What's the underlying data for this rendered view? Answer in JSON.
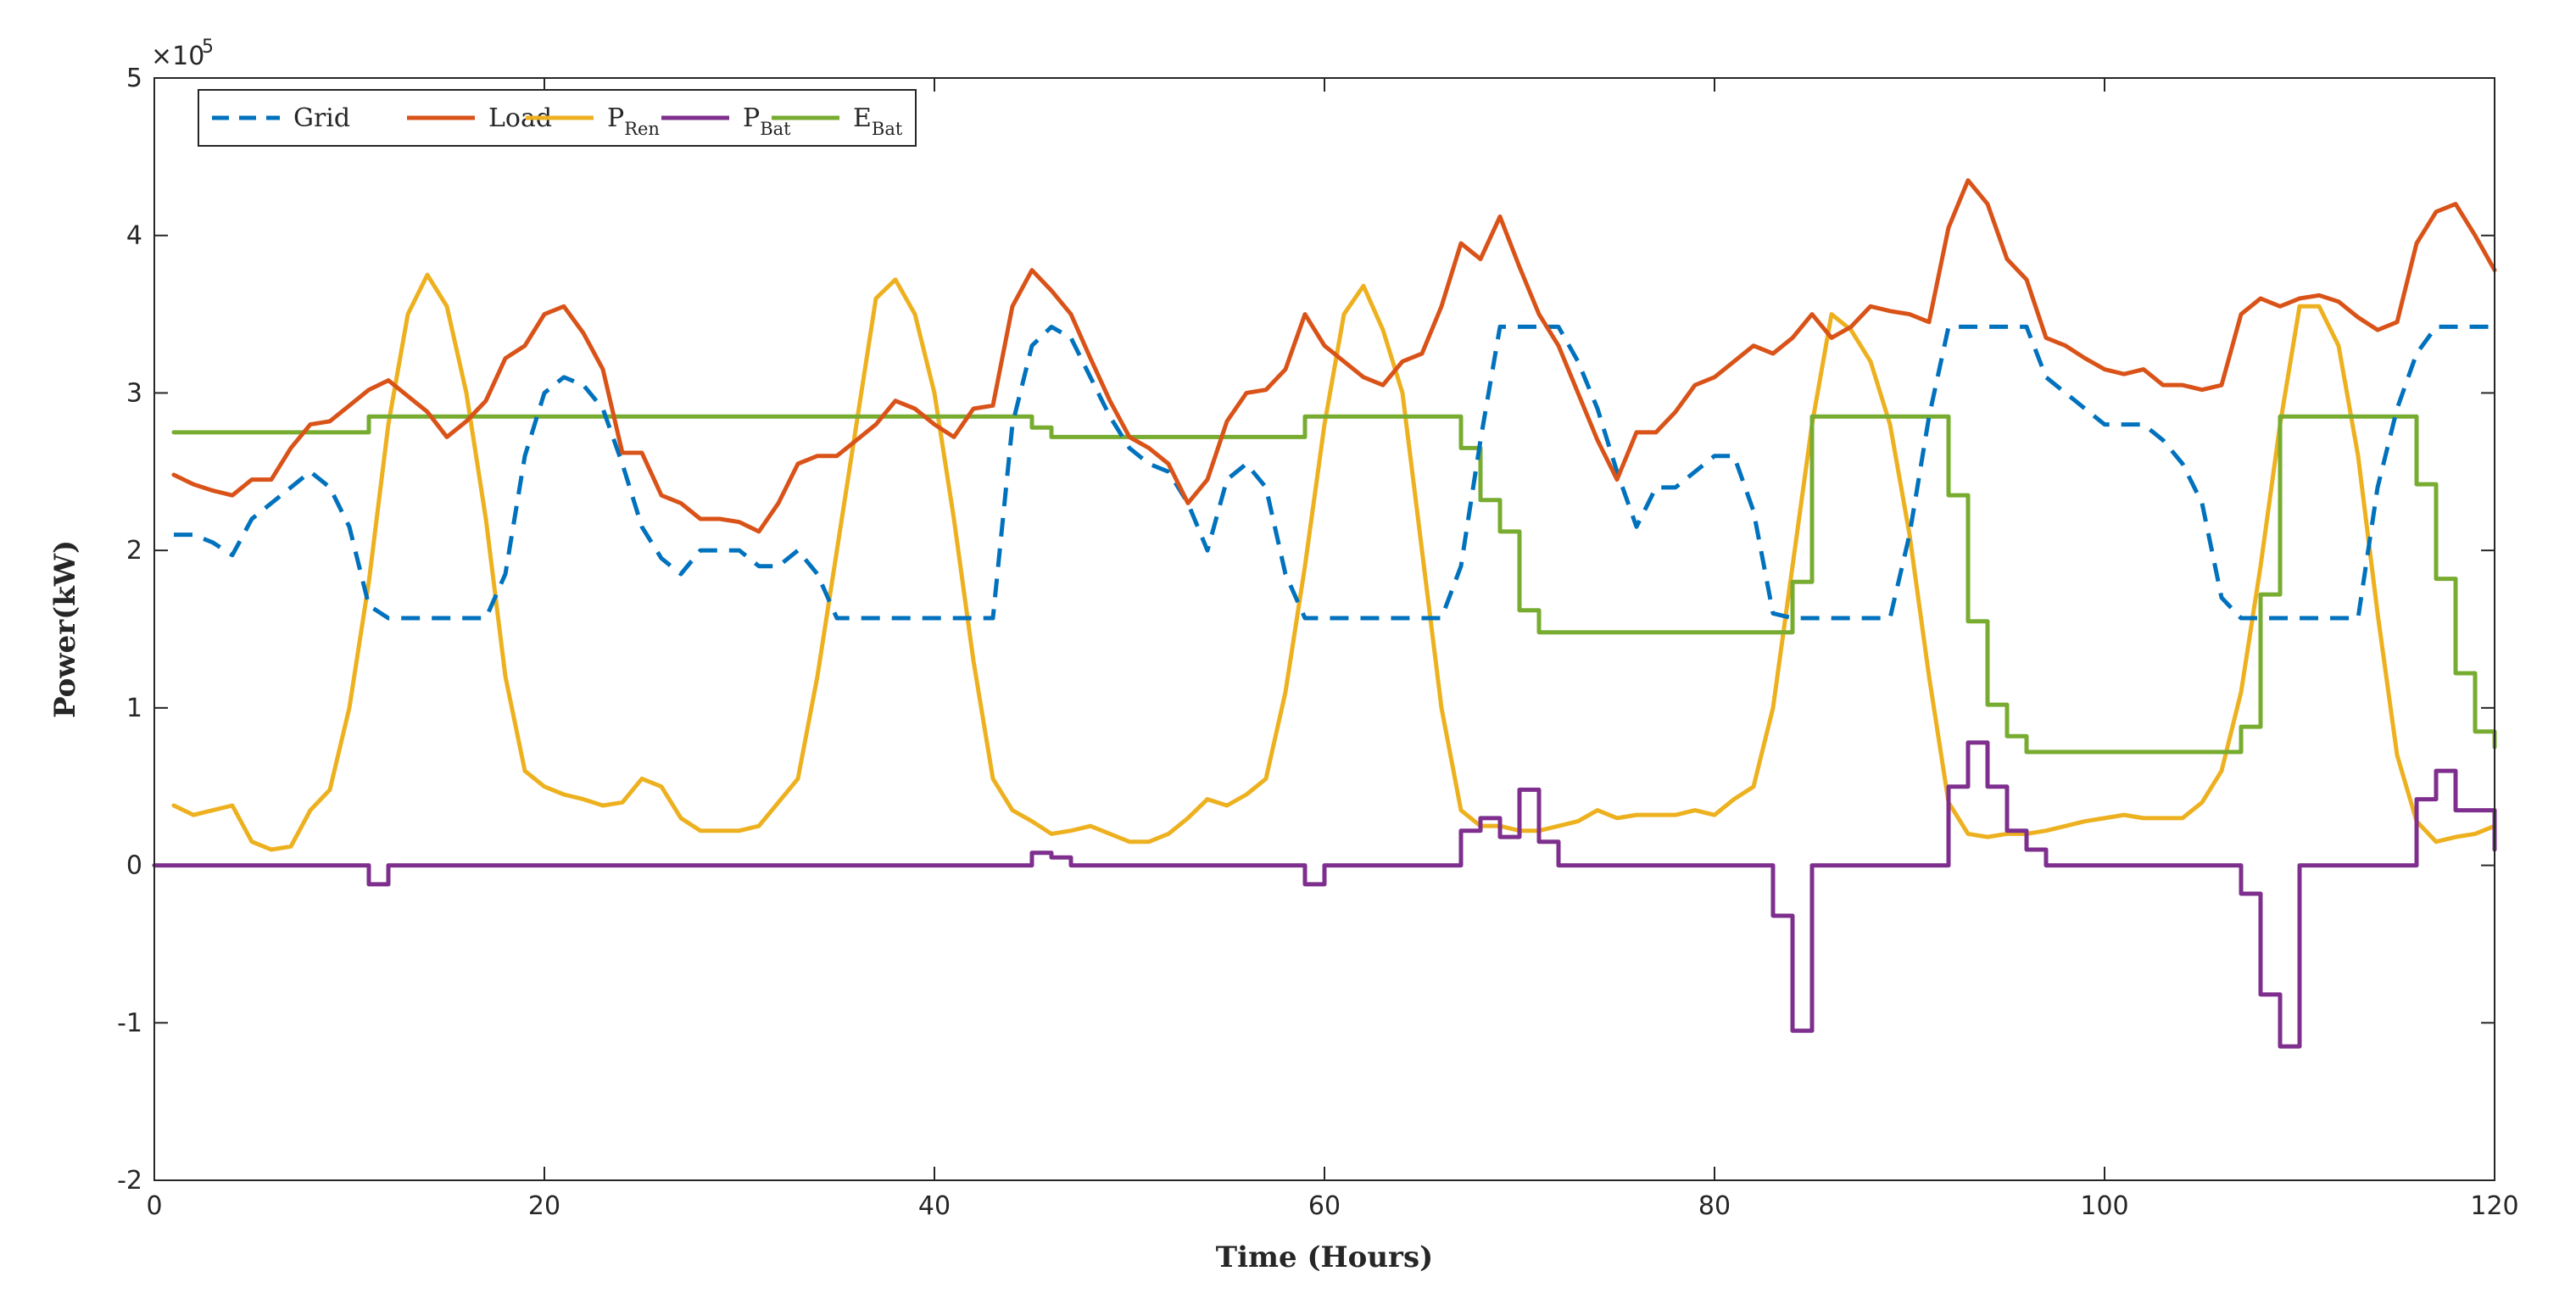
{
  "chart_data": {
    "type": "line",
    "title": "",
    "xlabel": "Time (Hours)",
    "ylabel": "Power(kW)",
    "xlim": [
      0,
      120
    ],
    "ylim": [
      -2,
      5
    ],
    "y_multiplier": "×10",
    "y_exponent": "5",
    "x_ticks": [
      "0",
      "20",
      "40",
      "60",
      "80",
      "100",
      "120"
    ],
    "y_ticks": [
      "-2",
      "-1",
      "0",
      "1",
      "2",
      "3",
      "4",
      "5"
    ],
    "x_tick_values": [
      0,
      20,
      40,
      60,
      80,
      100,
      120
    ],
    "y_tick_values": [
      -2,
      -1,
      0,
      1,
      2,
      3,
      4,
      5
    ],
    "legend_position": "top-left",
    "series": [
      {
        "name": "Grid",
        "legend_main": "Grid",
        "legend_sub": "",
        "color": "#0072BD",
        "style": "dashed",
        "step": false,
        "x": [
          1,
          2,
          3,
          4,
          5,
          6,
          7,
          8,
          9,
          10,
          11,
          12,
          13,
          14,
          15,
          16,
          17,
          18,
          19,
          20,
          21,
          22,
          23,
          24,
          25,
          26,
          27,
          28,
          29,
          30,
          31,
          32,
          33,
          34,
          35,
          36,
          37,
          38,
          39,
          40,
          41,
          42,
          43,
          44,
          45,
          46,
          47,
          48,
          49,
          50,
          51,
          52,
          53,
          54,
          55,
          56,
          57,
          58,
          59,
          60,
          61,
          62,
          63,
          64,
          65,
          66,
          67,
          68,
          69,
          70,
          71,
          72,
          73,
          74,
          75,
          76,
          77,
          78,
          79,
          80,
          81,
          82,
          83,
          84,
          85,
          86,
          87,
          88,
          89,
          90,
          91,
          92,
          93,
          94,
          95,
          96,
          97,
          98,
          99,
          100,
          101,
          102,
          103,
          104,
          105,
          106,
          107,
          108,
          109,
          110,
          111,
          112,
          113,
          114,
          115,
          116,
          117,
          118,
          119,
          120
        ],
        "y": [
          2.1,
          2.1,
          2.05,
          1.97,
          2.2,
          2.3,
          2.4,
          2.5,
          2.4,
          2.15,
          1.65,
          1.57,
          1.57,
          1.57,
          1.57,
          1.57,
          1.57,
          1.85,
          2.6,
          3.0,
          3.1,
          3.05,
          2.9,
          2.55,
          2.15,
          1.95,
          1.85,
          2.0,
          2.0,
          2.0,
          1.9,
          1.9,
          2.0,
          1.85,
          1.57,
          1.57,
          1.57,
          1.57,
          1.57,
          1.57,
          1.57,
          1.57,
          1.57,
          2.8,
          3.3,
          3.42,
          3.35,
          3.1,
          2.85,
          2.65,
          2.55,
          2.5,
          2.3,
          2.0,
          2.45,
          2.55,
          2.4,
          1.85,
          1.57,
          1.57,
          1.57,
          1.57,
          1.57,
          1.57,
          1.57,
          1.57,
          1.9,
          2.7,
          3.42,
          3.42,
          3.42,
          3.42,
          3.2,
          2.9,
          2.5,
          2.15,
          2.4,
          2.4,
          2.5,
          2.6,
          2.6,
          2.25,
          1.6,
          1.57,
          1.57,
          1.57,
          1.57,
          1.57,
          1.57,
          2.1,
          2.85,
          3.42,
          3.42,
          3.42,
          3.42,
          3.42,
          3.1,
          3.0,
          2.9,
          2.8,
          2.8,
          2.8,
          2.7,
          2.55,
          2.3,
          1.7,
          1.57,
          1.57,
          1.57,
          1.57,
          1.57,
          1.57,
          1.57,
          2.4,
          2.9,
          3.25,
          3.42,
          3.42,
          3.42,
          3.42
        ]
      },
      {
        "name": "Load",
        "legend_main": "Load",
        "legend_sub": "",
        "color": "#D95319",
        "style": "solid",
        "step": false,
        "x": [
          1,
          2,
          3,
          4,
          5,
          6,
          7,
          8,
          9,
          10,
          11,
          12,
          13,
          14,
          15,
          16,
          17,
          18,
          19,
          20,
          21,
          22,
          23,
          24,
          25,
          26,
          27,
          28,
          29,
          30,
          31,
          32,
          33,
          34,
          35,
          36,
          37,
          38,
          39,
          40,
          41,
          42,
          43,
          44,
          45,
          46,
          47,
          48,
          49,
          50,
          51,
          52,
          53,
          54,
          55,
          56,
          57,
          58,
          59,
          60,
          61,
          62,
          63,
          64,
          65,
          66,
          67,
          68,
          69,
          70,
          71,
          72,
          73,
          74,
          75,
          76,
          77,
          78,
          79,
          80,
          81,
          82,
          83,
          84,
          85,
          86,
          87,
          88,
          89,
          90,
          91,
          92,
          93,
          94,
          95,
          96,
          97,
          98,
          99,
          100,
          101,
          102,
          103,
          104,
          105,
          106,
          107,
          108,
          109,
          110,
          111,
          112,
          113,
          114,
          115,
          116,
          117,
          118,
          119,
          120
        ],
        "y": [
          2.48,
          2.42,
          2.38,
          2.35,
          2.45,
          2.45,
          2.65,
          2.8,
          2.82,
          2.92,
          3.02,
          3.08,
          2.98,
          2.88,
          2.72,
          2.82,
          2.95,
          3.22,
          3.3,
          3.5,
          3.55,
          3.38,
          3.15,
          2.62,
          2.62,
          2.35,
          2.3,
          2.2,
          2.2,
          2.18,
          2.12,
          2.3,
          2.55,
          2.6,
          2.6,
          2.7,
          2.8,
          2.95,
          2.9,
          2.8,
          2.72,
          2.9,
          2.92,
          3.55,
          3.78,
          3.65,
          3.5,
          3.22,
          2.95,
          2.72,
          2.65,
          2.55,
          2.3,
          2.45,
          2.82,
          3.0,
          3.02,
          3.15,
          3.5,
          3.3,
          3.2,
          3.1,
          3.05,
          3.2,
          3.25,
          3.55,
          3.95,
          3.85,
          4.12,
          3.8,
          3.5,
          3.3,
          3.0,
          2.7,
          2.45,
          2.75,
          2.75,
          2.88,
          3.05,
          3.1,
          3.2,
          3.3,
          3.25,
          3.35,
          3.5,
          3.35,
          3.42,
          3.55,
          3.52,
          3.5,
          3.45,
          4.05,
          4.35,
          4.2,
          3.85,
          3.72,
          3.35,
          3.3,
          3.22,
          3.15,
          3.12,
          3.15,
          3.05,
          3.05,
          3.02,
          3.05,
          3.5,
          3.6,
          3.55,
          3.6,
          3.62,
          3.58,
          3.48,
          3.4,
          3.45,
          3.95,
          4.15,
          4.2,
          4.0,
          3.78
        ]
      },
      {
        "name": "PRen",
        "legend_main": "P",
        "legend_sub": "Ren",
        "color": "#EDB120",
        "style": "solid",
        "step": false,
        "x": [
          1,
          2,
          3,
          4,
          5,
          6,
          7,
          8,
          9,
          10,
          11,
          12,
          13,
          14,
          15,
          16,
          17,
          18,
          19,
          20,
          21,
          22,
          23,
          24,
          25,
          26,
          27,
          28,
          29,
          30,
          31,
          32,
          33,
          34,
          35,
          36,
          37,
          38,
          39,
          40,
          41,
          42,
          43,
          44,
          45,
          46,
          47,
          48,
          49,
          50,
          51,
          52,
          53,
          54,
          55,
          56,
          57,
          58,
          59,
          60,
          61,
          62,
          63,
          64,
          65,
          66,
          67,
          68,
          69,
          70,
          71,
          72,
          73,
          74,
          75,
          76,
          77,
          78,
          79,
          80,
          81,
          82,
          83,
          84,
          85,
          86,
          87,
          88,
          89,
          90,
          91,
          92,
          93,
          94,
          95,
          96,
          97,
          98,
          99,
          100,
          101,
          102,
          103,
          104,
          105,
          106,
          107,
          108,
          109,
          110,
          111,
          112,
          113,
          114,
          115,
          116,
          117,
          118,
          119,
          120
        ],
        "y": [
          0.38,
          0.32,
          0.35,
          0.38,
          0.15,
          0.1,
          0.12,
          0.35,
          0.48,
          1.0,
          1.8,
          2.8,
          3.5,
          3.75,
          3.55,
          3.0,
          2.2,
          1.2,
          0.6,
          0.5,
          0.45,
          0.42,
          0.38,
          0.4,
          0.55,
          0.5,
          0.3,
          0.22,
          0.22,
          0.22,
          0.25,
          0.4,
          0.55,
          1.2,
          2.0,
          2.8,
          3.6,
          3.72,
          3.5,
          3.0,
          2.2,
          1.3,
          0.55,
          0.35,
          0.28,
          0.2,
          0.22,
          0.25,
          0.2,
          0.15,
          0.15,
          0.2,
          0.3,
          0.42,
          0.38,
          0.45,
          0.55,
          1.1,
          1.9,
          2.8,
          3.5,
          3.68,
          3.4,
          3.0,
          2.0,
          1.0,
          0.35,
          0.25,
          0.25,
          0.22,
          0.22,
          0.25,
          0.28,
          0.35,
          0.3,
          0.32,
          0.32,
          0.32,
          0.35,
          0.32,
          0.42,
          0.5,
          1.0,
          1.9,
          2.8,
          3.5,
          3.4,
          3.2,
          2.8,
          2.1,
          1.2,
          0.4,
          0.2,
          0.18,
          0.2,
          0.2,
          0.22,
          0.25,
          0.28,
          0.3,
          0.32,
          0.3,
          0.3,
          0.3,
          0.4,
          0.6,
          1.1,
          1.9,
          2.8,
          3.55,
          3.55,
          3.3,
          2.6,
          1.6,
          0.7,
          0.28,
          0.15,
          0.18,
          0.2,
          0.25
        ]
      },
      {
        "name": "PBat",
        "legend_main": "P",
        "legend_sub": "Bat",
        "color": "#7E2F8E",
        "style": "solid",
        "step": true,
        "x": [
          0,
          11,
          12,
          45,
          46,
          47,
          59,
          60,
          67,
          68,
          69,
          70,
          71,
          72,
          83,
          84,
          85,
          92,
          93,
          94,
          95,
          96,
          97,
          107,
          108,
          109,
          110,
          116,
          117,
          118,
          120
        ],
        "y": [
          0,
          -0.12,
          0,
          0.08,
          0.05,
          0,
          -0.12,
          0,
          0.22,
          0.3,
          0.18,
          0.48,
          0.15,
          0,
          -0.32,
          -1.05,
          0,
          0.5,
          0.78,
          0.5,
          0.22,
          0.1,
          0,
          -0.18,
          -0.82,
          -1.15,
          0,
          0.42,
          0.6,
          0.35,
          0.1
        ]
      },
      {
        "name": "EBat",
        "legend_main": "E",
        "legend_sub": "Bat",
        "color": "#77AC30",
        "style": "solid",
        "step": true,
        "x": [
          1,
          11,
          45,
          46,
          59,
          67,
          68,
          69,
          70,
          71,
          84,
          85,
          92,
          93,
          94,
          95,
          96,
          107,
          108,
          109,
          116,
          117,
          118,
          119,
          120
        ],
        "y": [
          2.75,
          2.85,
          2.78,
          2.72,
          2.85,
          2.65,
          2.32,
          2.12,
          1.62,
          1.48,
          1.8,
          2.85,
          2.35,
          1.55,
          1.02,
          0.82,
          0.72,
          0.88,
          1.72,
          2.85,
          2.42,
          1.82,
          1.22,
          0.85,
          0.75
        ]
      }
    ]
  }
}
